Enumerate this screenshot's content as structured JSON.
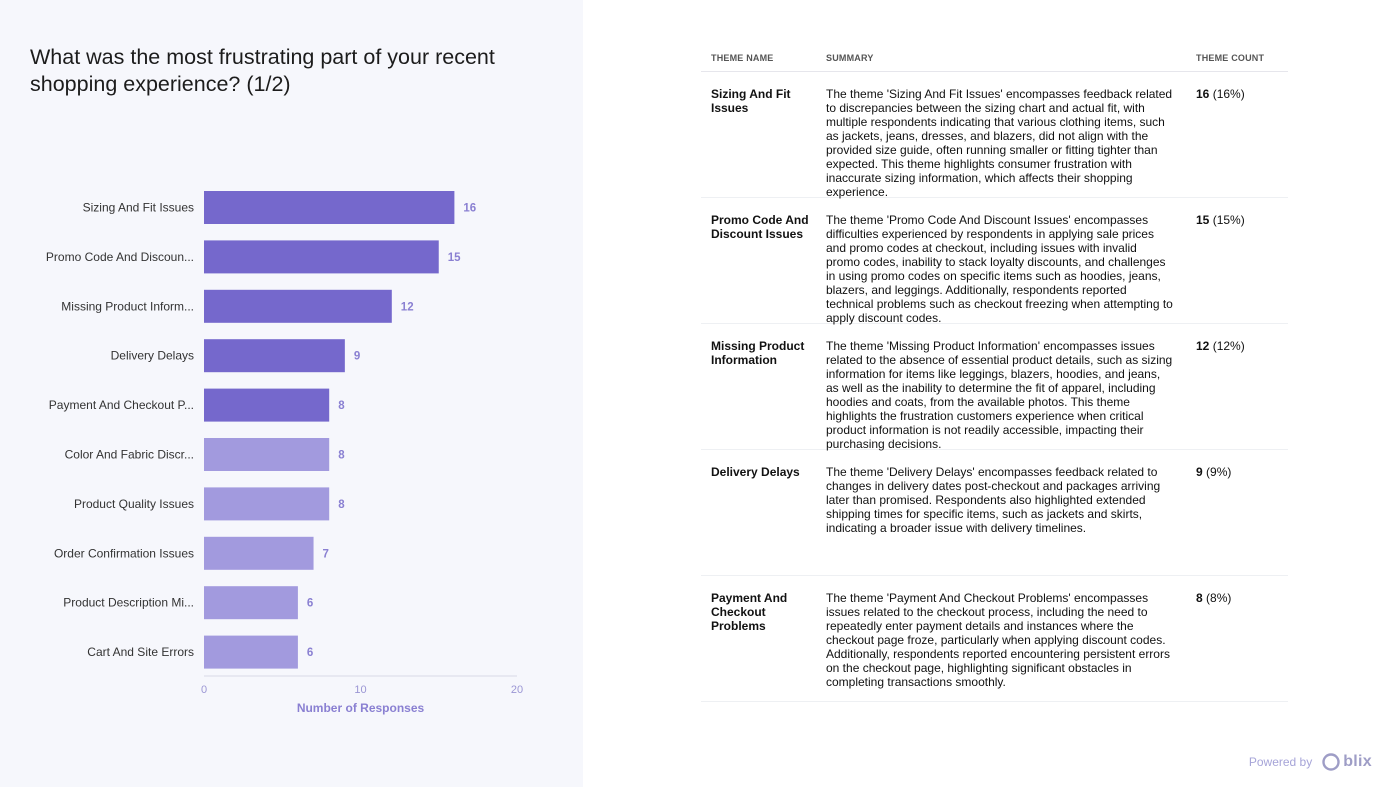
{
  "title": "What was the most frustrating part of your recent shopping experience? (1/2)",
  "chart_data": {
    "type": "bar",
    "orientation": "horizontal",
    "categories": [
      "Sizing And Fit Issues",
      "Promo Code And Discoun...",
      "Missing Product Inform...",
      "Delivery Delays",
      "Payment And Checkout P...",
      "Color And Fabric Discr...",
      "Product Quality Issues",
      "Order Confirmation Issues",
      "Product Description Mi...",
      "Cart And Site Errors"
    ],
    "values": [
      16,
      15,
      12,
      9,
      8,
      8,
      8,
      7,
      6,
      6
    ],
    "highlighted_count": 5,
    "xlabel": "Number of Responses",
    "ylabel": "",
    "xlim": [
      0,
      20
    ],
    "xticks": [
      "0",
      "10",
      "20"
    ],
    "grid": false,
    "colors": {
      "primary": "#7568cc",
      "secondary": "#a29ade",
      "label": "#8a80d2"
    }
  },
  "table": {
    "headers": [
      "THEME NAME",
      "SUMMARY",
      "THEME COUNT"
    ],
    "rows": [
      {
        "name": "Sizing And Fit Issues",
        "summary": "The theme 'Sizing And Fit Issues' encompasses feedback related to discrepancies between the sizing chart and actual fit, with multiple respondents indicating that various clothing items, such as jackets, jeans, dresses, and blazers, did not align with the provided size guide, often running smaller or fitting tighter than expected. This theme highlights consumer frustration with inaccurate sizing information, which affects their shopping experience.",
        "count": "16",
        "pct": "(16%)"
      },
      {
        "name": "Promo Code And Discount Issues",
        "summary": "The theme 'Promo Code And Discount Issues' encompasses difficulties experienced by respondents in applying sale prices and promo codes at checkout, including issues with invalid promo codes, inability to stack loyalty discounts, and challenges in using promo codes on specific items such as hoodies, jeans, blazers, and leggings. Additionally, respondents reported technical problems such as checkout freezing when attempting to apply discount codes.",
        "count": "15",
        "pct": "(15%)"
      },
      {
        "name": "Missing Product Information",
        "summary": "The theme 'Missing Product Information' encompasses issues related to the absence of essential product details, such as sizing information for items like leggings, blazers, hoodies, and jeans, as well as the inability to determine the fit of apparel, including hoodies and coats, from the available photos. This theme highlights the frustration customers experience when critical product information is not readily accessible, impacting their purchasing decisions.",
        "count": "12",
        "pct": "(12%)"
      },
      {
        "name": "Delivery Delays",
        "summary": "The theme 'Delivery Delays' encompasses feedback related to changes in delivery dates post-checkout and packages arriving later than promised. Respondents also highlighted extended shipping times for specific items, such as jackets and skirts, indicating a broader issue with delivery timelines.",
        "count": "9",
        "pct": "(9%)"
      },
      {
        "name": "Payment And Checkout Problems",
        "summary": "The theme 'Payment And Checkout Problems' encompasses issues related to the checkout process, including the need to repeatedly enter payment details and instances where the checkout page froze, particularly when applying discount codes. Additionally, respondents reported encountering persistent errors on the checkout page, highlighting significant obstacles in completing transactions smoothly.",
        "count": "8",
        "pct": "(8%)"
      }
    ]
  },
  "footer": {
    "powered_by": "Powered by",
    "brand": "blix"
  }
}
